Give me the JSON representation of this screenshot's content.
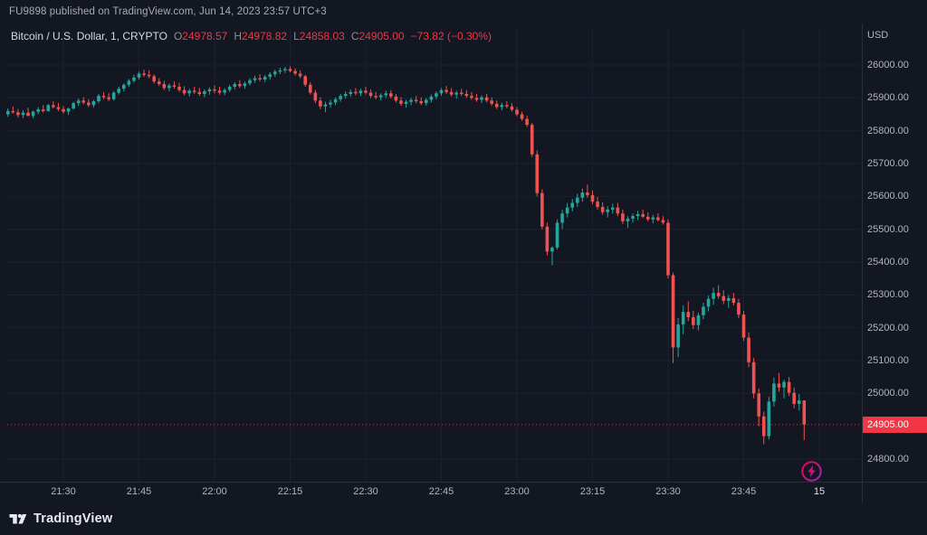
{
  "colors": {
    "background": "#131722",
    "up": "#26a69a",
    "down": "#ef5350",
    "accent_red": "#f23645",
    "grid": "#1c2130",
    "separator": "#2a2e39",
    "scale_text": "#b2b5be"
  },
  "attribution": {
    "text": "FU9898 published on TradingView.com, Jun 14, 2023 23:57 UTC+3"
  },
  "legend": {
    "symbol_title": "Bitcoin / U.S. Dollar, 1, CRYPTO",
    "ohlc": [
      {
        "label": "O",
        "value": "24978.57"
      },
      {
        "label": "H",
        "value": "24978.82"
      },
      {
        "label": "L",
        "value": "24858.03"
      },
      {
        "label": "C",
        "value": "24905.00"
      }
    ],
    "change": "−73.82 (−0.30%)"
  },
  "price_scale": {
    "currency": "USD",
    "ticks": [
      "26000.00",
      "25900.00",
      "25800.00",
      "25700.00",
      "25600.00",
      "25500.00",
      "25400.00",
      "25300.00",
      "25200.00",
      "25100.00",
      "25000.00",
      "24800.00"
    ],
    "last_price": {
      "label": "24905.00",
      "value": 24905.0
    }
  },
  "time_scale": {
    "ticks": [
      {
        "label": "21:30",
        "minute": 0
      },
      {
        "label": "21:45",
        "minute": 15
      },
      {
        "label": "22:00",
        "minute": 30
      },
      {
        "label": "22:15",
        "minute": 45
      },
      {
        "label": "22:30",
        "minute": 60
      },
      {
        "label": "22:45",
        "minute": 75
      },
      {
        "label": "23:00",
        "minute": 90
      },
      {
        "label": "23:15",
        "minute": 105
      },
      {
        "label": "23:30",
        "minute": 120
      },
      {
        "label": "23:45",
        "minute": 135
      },
      {
        "label": "15",
        "minute": 150,
        "emphasis": true
      }
    ]
  },
  "footer": {
    "brand": "TradingView"
  },
  "chart_data": {
    "type": "candlestick",
    "title": "Bitcoin / U.S. Dollar",
    "exchange": "CRYPTO",
    "interval": "1 minute",
    "currency": "USD",
    "date": "Jun 14, 2023",
    "first_candle_time": "21:19",
    "last_candle_time": "23:57",
    "first_candle_minute_offset": -11,
    "visible_price_range": [
      24800,
      26000
    ],
    "price_gridline_step": 100,
    "ohlc_format": [
      "open",
      "high",
      "low",
      "close"
    ],
    "last": {
      "open": 24978.57,
      "high": 24978.82,
      "low": 24858.03,
      "close": 24905.0,
      "change": -73.82,
      "change_pct": -0.3
    },
    "candles": [
      [
        25850,
        25868,
        25842,
        25860
      ],
      [
        25860,
        25874,
        25852,
        25856
      ],
      [
        25856,
        25866,
        25840,
        25848
      ],
      [
        25848,
        25862,
        25838,
        25855
      ],
      [
        25855,
        25870,
        25846,
        25845
      ],
      [
        25845,
        25862,
        25838,
        25858
      ],
      [
        25858,
        25872,
        25850,
        25865
      ],
      [
        25865,
        25878,
        25855,
        25860
      ],
      [
        25860,
        25882,
        25858,
        25878
      ],
      [
        25878,
        25890,
        25868,
        25872
      ],
      [
        25872,
        25885,
        25860,
        25866
      ],
      [
        25866,
        25875,
        25852,
        25858
      ],
      [
        25858,
        25870,
        25848,
        25868
      ],
      [
        25868,
        25888,
        25864,
        25884
      ],
      [
        25884,
        25898,
        25876,
        25892
      ],
      [
        25892,
        25902,
        25880,
        25886
      ],
      [
        25886,
        25896,
        25872,
        25878
      ],
      [
        25878,
        25894,
        25870,
        25890
      ],
      [
        25890,
        25912,
        25884,
        25906
      ],
      [
        25906,
        25918,
        25896,
        25902
      ],
      [
        25902,
        25914,
        25890,
        25896
      ],
      [
        25896,
        25920,
        25892,
        25916
      ],
      [
        25916,
        25934,
        25910,
        25928
      ],
      [
        25928,
        25944,
        25920,
        25940
      ],
      [
        25940,
        25958,
        25934,
        25952
      ],
      [
        25952,
        25970,
        25946,
        25962
      ],
      [
        25962,
        25980,
        25956,
        25974
      ],
      [
        25974,
        25986,
        25964,
        25970
      ],
      [
        25970,
        25984,
        25960,
        25966
      ],
      [
        25966,
        25972,
        25944,
        25950
      ],
      [
        25950,
        25960,
        25936,
        25942
      ],
      [
        25942,
        25952,
        25924,
        25930
      ],
      [
        25930,
        25944,
        25920,
        25938
      ],
      [
        25938,
        25950,
        25928,
        25934
      ],
      [
        25934,
        25946,
        25918,
        25924
      ],
      [
        25924,
        25936,
        25908,
        25914
      ],
      [
        25914,
        25928,
        25904,
        25922
      ],
      [
        25922,
        25934,
        25912,
        25918
      ],
      [
        25918,
        25930,
        25906,
        25912
      ],
      [
        25912,
        25926,
        25902,
        25920
      ],
      [
        25920,
        25932,
        25910,
        25926
      ],
      [
        25926,
        25938,
        25914,
        25922
      ],
      [
        25922,
        25934,
        25910,
        25916
      ],
      [
        25916,
        25930,
        25908,
        25924
      ],
      [
        25924,
        25940,
        25918,
        25934
      ],
      [
        25934,
        25948,
        25926,
        25942
      ],
      [
        25942,
        25954,
        25930,
        25936
      ],
      [
        25936,
        25950,
        25928,
        25944
      ],
      [
        25944,
        25960,
        25938,
        25954
      ],
      [
        25954,
        25968,
        25946,
        25960
      ],
      [
        25960,
        25972,
        25950,
        25956
      ],
      [
        25956,
        25970,
        25948,
        25964
      ],
      [
        25964,
        25978,
        25956,
        25972
      ],
      [
        25972,
        25986,
        25964,
        25980
      ],
      [
        25980,
        25992,
        25972,
        25984
      ],
      [
        25984,
        25994,
        25976,
        25988
      ],
      [
        25988,
        25996,
        25978,
        25982
      ],
      [
        25982,
        25990,
        25968,
        25974
      ],
      [
        25974,
        25984,
        25960,
        25966
      ],
      [
        25966,
        25970,
        25934,
        25940
      ],
      [
        25940,
        25948,
        25910,
        25916
      ],
      [
        25916,
        25924,
        25884,
        25892
      ],
      [
        25892,
        25902,
        25866,
        25874
      ],
      [
        25874,
        25888,
        25856,
        25880
      ],
      [
        25880,
        25894,
        25870,
        25886
      ],
      [
        25886,
        25902,
        25878,
        25896
      ],
      [
        25896,
        25912,
        25888,
        25906
      ],
      [
        25906,
        25920,
        25898,
        25912
      ],
      [
        25912,
        25926,
        25904,
        25918
      ],
      [
        25918,
        25930,
        25908,
        25914
      ],
      [
        25914,
        25928,
        25906,
        25922
      ],
      [
        25922,
        25934,
        25910,
        25916
      ],
      [
        25916,
        25926,
        25900,
        25906
      ],
      [
        25906,
        25918,
        25896,
        25902
      ],
      [
        25902,
        25914,
        25892,
        25908
      ],
      [
        25908,
        25922,
        25900,
        25914
      ],
      [
        25914,
        25924,
        25898,
        25904
      ],
      [
        25904,
        25912,
        25886,
        25892
      ],
      [
        25892,
        25902,
        25876,
        25882
      ],
      [
        25882,
        25894,
        25870,
        25888
      ],
      [
        25888,
        25900,
        25878,
        25894
      ],
      [
        25894,
        25906,
        25884,
        25890
      ],
      [
        25890,
        25902,
        25878,
        25884
      ],
      [
        25884,
        25900,
        25876,
        25894
      ],
      [
        25894,
        25910,
        25886,
        25904
      ],
      [
        25904,
        25920,
        25896,
        25914
      ],
      [
        25914,
        25930,
        25906,
        25924
      ],
      [
        25924,
        25936,
        25912,
        25918
      ],
      [
        25918,
        25930,
        25904,
        25910
      ],
      [
        25910,
        25922,
        25898,
        25916
      ],
      [
        25916,
        25928,
        25906,
        25912
      ],
      [
        25912,
        25924,
        25900,
        25906
      ],
      [
        25906,
        25918,
        25894,
        25900
      ],
      [
        25900,
        25912,
        25888,
        25894
      ],
      [
        25894,
        25908,
        25884,
        25902
      ],
      [
        25902,
        25912,
        25886,
        25892
      ],
      [
        25892,
        25902,
        25876,
        25882
      ],
      [
        25882,
        25892,
        25866,
        25872
      ],
      [
        25872,
        25886,
        25862,
        25878
      ],
      [
        25878,
        25890,
        25868,
        25874
      ],
      [
        25874,
        25884,
        25858,
        25864
      ],
      [
        25864,
        25872,
        25844,
        25850
      ],
      [
        25850,
        25858,
        25830,
        25836
      ],
      [
        25836,
        25846,
        25812,
        25818
      ],
      [
        25818,
        25824,
        25720,
        25728
      ],
      [
        25728,
        25740,
        25600,
        25610
      ],
      [
        25610,
        25622,
        25500,
        25508
      ],
      [
        25508,
        25520,
        25420,
        25432
      ],
      [
        25432,
        25448,
        25390,
        25444
      ],
      [
        25444,
        25530,
        25438,
        25520
      ],
      [
        25520,
        25560,
        25500,
        25548
      ],
      [
        25548,
        25580,
        25536,
        25566
      ],
      [
        25566,
        25592,
        25554,
        25580
      ],
      [
        25580,
        25608,
        25568,
        25596
      ],
      [
        25596,
        25624,
        25584,
        25612
      ],
      [
        25612,
        25636,
        25596,
        25604
      ],
      [
        25604,
        25618,
        25576,
        25584
      ],
      [
        25584,
        25598,
        25560,
        25568
      ],
      [
        25568,
        25582,
        25544,
        25552
      ],
      [
        25552,
        25570,
        25536,
        25560
      ],
      [
        25560,
        25578,
        25548,
        25566
      ],
      [
        25566,
        25580,
        25540,
        25548
      ],
      [
        25548,
        25560,
        25516,
        25524
      ],
      [
        25524,
        25540,
        25504,
        25532
      ],
      [
        25532,
        25548,
        25520,
        25540
      ],
      [
        25540,
        25556,
        25528,
        25546
      ],
      [
        25546,
        25560,
        25534,
        25538
      ],
      [
        25538,
        25552,
        25524,
        25530
      ],
      [
        25530,
        25544,
        25518,
        25536
      ],
      [
        25536,
        25548,
        25524,
        25528
      ],
      [
        25528,
        25540,
        25514,
        25520
      ],
      [
        25520,
        25530,
        25350,
        25360
      ],
      [
        25360,
        25368,
        25092,
        25140
      ],
      [
        25140,
        25230,
        25110,
        25210
      ],
      [
        25210,
        25268,
        25180,
        25248
      ],
      [
        25248,
        25280,
        25220,
        25232
      ],
      [
        25232,
        25252,
        25196,
        25208
      ],
      [
        25208,
        25246,
        25192,
        25238
      ],
      [
        25238,
        25276,
        25226,
        25264
      ],
      [
        25264,
        25298,
        25250,
        25288
      ],
      [
        25288,
        25322,
        25270,
        25306
      ],
      [
        25306,
        25330,
        25288,
        25296
      ],
      [
        25296,
        25314,
        25272,
        25282
      ],
      [
        25282,
        25300,
        25260,
        25290
      ],
      [
        25290,
        25306,
        25268,
        25276
      ],
      [
        25276,
        25288,
        25230,
        25240
      ],
      [
        25240,
        25252,
        25160,
        25170
      ],
      [
        25170,
        25186,
        25080,
        25095
      ],
      [
        25095,
        25108,
        24985,
        25000
      ],
      [
        25000,
        25015,
        24900,
        24930
      ],
      [
        24930,
        24945,
        24845,
        24870
      ],
      [
        24870,
        24990,
        24860,
        24975
      ],
      [
        24975,
        25048,
        24960,
        25030
      ],
      [
        25030,
        25062,
        25005,
        25018
      ],
      [
        25018,
        25042,
        24985,
        25035
      ],
      [
        25035,
        25050,
        24992,
        25002
      ],
      [
        25002,
        25018,
        24955,
        24968
      ],
      [
        24968,
        24998,
        24948,
        24978.57
      ],
      [
        24978.57,
        24978.82,
        24858.03,
        24905.0
      ]
    ]
  }
}
